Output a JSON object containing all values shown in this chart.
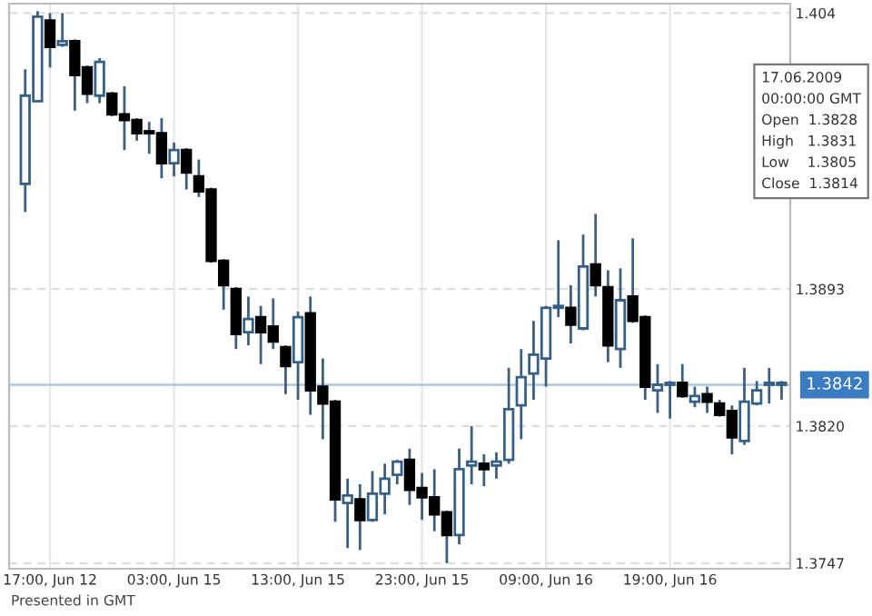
{
  "chart_data": {
    "type": "candlestick",
    "categories": [
      null,
      null,
      "17:00, Jun 12",
      null,
      null,
      null,
      null,
      null,
      null,
      null,
      null,
      null,
      "03:00, Jun 15",
      null,
      null,
      null,
      null,
      null,
      null,
      null,
      null,
      null,
      "13:00, Jun 15",
      null,
      null,
      null,
      null,
      null,
      null,
      null,
      null,
      null,
      "23:00, Jun 15",
      null,
      null,
      null,
      null,
      null,
      null,
      null,
      null,
      null,
      "09:00, Jun 16",
      null,
      null,
      null,
      null,
      null,
      null,
      null,
      null,
      null,
      "19:00, Jun 16",
      null,
      null,
      null,
      null,
      null,
      null,
      null,
      null,
      null
    ],
    "ohlc": [
      [
        1.3949,
        1.401,
        1.3934,
        1.3996
      ],
      [
        1.3993,
        1.4041,
        1.3993,
        1.4038
      ],
      [
        1.4036,
        1.404,
        1.4011,
        1.4022
      ],
      [
        1.4023,
        1.404,
        1.4022,
        1.4025
      ],
      [
        1.4025,
        1.4026,
        1.3988,
        1.4007
      ],
      [
        1.4011,
        1.4012,
        1.3992,
        1.3997
      ],
      [
        1.3996,
        1.4016,
        1.3992,
        1.4014
      ],
      [
        1.3997,
        1.3998,
        1.3985,
        1.3986
      ],
      [
        1.3986,
        1.4001,
        1.3967,
        1.3983
      ],
      [
        1.3983,
        1.3984,
        1.3972,
        1.3976
      ],
      [
        1.3977,
        1.3982,
        1.3965,
        1.3976
      ],
      [
        1.3976,
        1.3984,
        1.3952,
        1.396
      ],
      [
        1.396,
        1.3971,
        1.3953,
        1.3967
      ],
      [
        1.3967,
        1.3968,
        1.3946,
        1.3955
      ],
      [
        1.3953,
        1.3962,
        1.3942,
        1.3945
      ],
      [
        1.3946,
        1.3947,
        1.3907,
        1.3908
      ],
      [
        1.3908,
        1.3909,
        1.3882,
        1.3895
      ],
      [
        1.3893,
        1.3894,
        1.3861,
        1.3869
      ],
      [
        1.387,
        1.3889,
        1.3863,
        1.3877
      ],
      [
        1.3878,
        1.3884,
        1.3853,
        1.387
      ],
      [
        1.3873,
        1.3888,
        1.3861,
        1.3865
      ],
      [
        1.3862,
        1.3863,
        1.3837,
        1.3852
      ],
      [
        1.3854,
        1.3881,
        1.3834,
        1.3878
      ],
      [
        1.388,
        1.3889,
        1.3826,
        1.3839
      ],
      [
        1.3841,
        1.3856,
        1.3813,
        1.3832
      ],
      [
        1.3833,
        1.3834,
        1.3769,
        1.3781
      ],
      [
        1.3779,
        1.3792,
        1.3755,
        1.3783
      ],
      [
        1.3781,
        1.3789,
        1.3754,
        1.377
      ],
      [
        1.377,
        1.3796,
        1.3769,
        1.3784
      ],
      [
        1.3784,
        1.38,
        1.3773,
        1.3792
      ],
      [
        1.3794,
        1.3802,
        1.3789,
        1.3801
      ],
      [
        1.3802,
        1.3808,
        1.3778,
        1.3786
      ],
      [
        1.3787,
        1.3795,
        1.377,
        1.3782
      ],
      [
        1.3782,
        1.3797,
        1.3764,
        1.3773
      ],
      [
        1.3774,
        1.3775,
        1.3747,
        1.3762
      ],
      [
        1.3762,
        1.3808,
        1.3757,
        1.3797
      ],
      [
        1.3799,
        1.382,
        1.3789,
        1.3801
      ],
      [
        1.38,
        1.3805,
        1.3788,
        1.3797
      ],
      [
        1.3799,
        1.3806,
        1.3792,
        1.3801
      ],
      [
        1.3802,
        1.3851,
        1.38,
        1.3829
      ],
      [
        1.3831,
        1.3861,
        1.3813,
        1.3846
      ],
      [
        1.3848,
        1.3876,
        1.3834,
        1.3858
      ],
      [
        1.3856,
        1.3884,
        1.3841,
        1.3883
      ],
      [
        1.3883,
        1.3919,
        1.3878,
        1.3884
      ],
      [
        1.3883,
        1.3895,
        1.3864,
        1.3874
      ],
      [
        1.3872,
        1.3922,
        1.3871,
        1.3905
      ],
      [
        1.3906,
        1.3933,
        1.3889,
        1.3895
      ],
      [
        1.3894,
        1.3903,
        1.3854,
        1.3863
      ],
      [
        1.3861,
        1.3904,
        1.3851,
        1.3887
      ],
      [
        1.3889,
        1.392,
        1.3875,
        1.3876
      ],
      [
        1.3878,
        1.3879,
        1.3834,
        1.3841
      ],
      [
        1.3839,
        1.3853,
        1.3827,
        1.3842
      ],
      [
        1.3842,
        1.3844,
        1.3824,
        1.3843
      ],
      [
        1.3843,
        1.3853,
        1.3835,
        1.3836
      ],
      [
        1.3833,
        1.3841,
        1.383,
        1.3836
      ],
      [
        1.3837,
        1.3841,
        1.3827,
        1.3833
      ],
      [
        1.3832,
        1.3834,
        1.3825,
        1.3826
      ],
      [
        1.3828,
        1.3831,
        1.3805,
        1.3814
      ],
      [
        1.3812,
        1.3851,
        1.381,
        1.3833
      ],
      [
        1.3832,
        1.3844,
        1.3831,
        1.3839
      ],
      [
        1.3842,
        1.3851,
        1.3832,
        1.3843
      ],
      [
        1.3842,
        1.3844,
        1.3834,
        1.3843
      ]
    ],
    "ylim": [
      1.3744,
      1.4045
    ],
    "yticks": [
      1.404,
      1.3893,
      {
        "value": 1.382,
        "label": "1.3820"
      },
      1.3747
    ],
    "grid": true,
    "ref_lines": [
      {
        "axis": "y",
        "value": 1.3842,
        "label": "1.3842",
        "color": "#a9c8e0"
      }
    ],
    "annotations": [
      "17.06.2009\n00:00:00 GMT\nOpen  1.3828\nHigh   1.3831\nLow    1.3805\nClose  1.3814",
      "Presented in GMT"
    ]
  }
}
